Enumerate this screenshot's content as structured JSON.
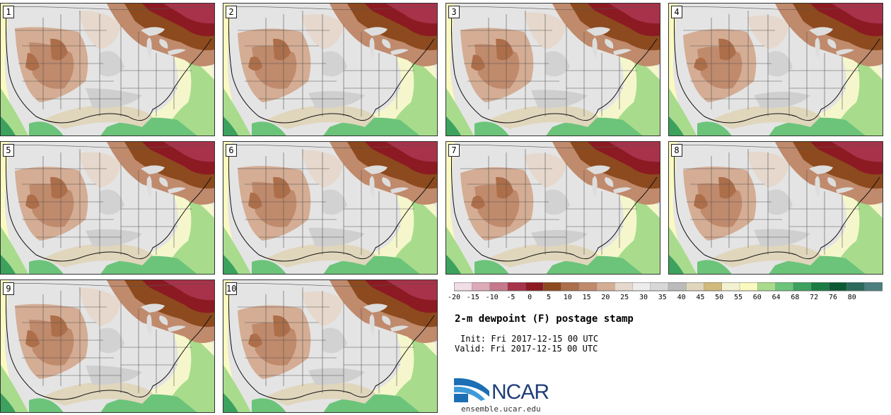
{
  "chart_data": {
    "type": "map",
    "title": "2-m dewpoint (F) postage stamp",
    "init_label": "Init: Fri 2017-12-15 00 UTC",
    "valid_label": "Valid: Fri 2017-12-15 00 UTC",
    "variable": "2-m dewpoint",
    "units": "F",
    "members": [
      {
        "label": "1"
      },
      {
        "label": "2"
      },
      {
        "label": "3"
      },
      {
        "label": "4"
      },
      {
        "label": "5"
      },
      {
        "label": "6"
      },
      {
        "label": "7"
      },
      {
        "label": "8"
      },
      {
        "label": "9"
      },
      {
        "label": "10"
      }
    ],
    "colorbar": {
      "ticks": [
        "-20",
        "-15",
        "-10",
        "-5",
        "0",
        "5",
        "10",
        "15",
        "20",
        "25",
        "30",
        "35",
        "40",
        "45",
        "50",
        "55",
        "60",
        "64",
        "68",
        "72",
        "76",
        "80"
      ],
      "colors": [
        "#f0dde6",
        "#ddaab8",
        "#c47a8c",
        "#a8324a",
        "#8c1a22",
        "#8c4a1e",
        "#ad6e4a",
        "#c08a6c",
        "#d4ad94",
        "#e6d8cc",
        "#ececec",
        "#d8d8d8",
        "#bbbbbb",
        "#e0d6bc",
        "#d2ba7c",
        "#f2f2d2",
        "#fafac0",
        "#a8dc8c",
        "#6cc47a",
        "#3ca25e",
        "#1c7c44",
        "#0c5a34",
        "#2c6a5e",
        "#4c8080"
      ]
    }
  },
  "branding": {
    "logo": "NCAR",
    "site": "ensemble.ucar.edu"
  }
}
